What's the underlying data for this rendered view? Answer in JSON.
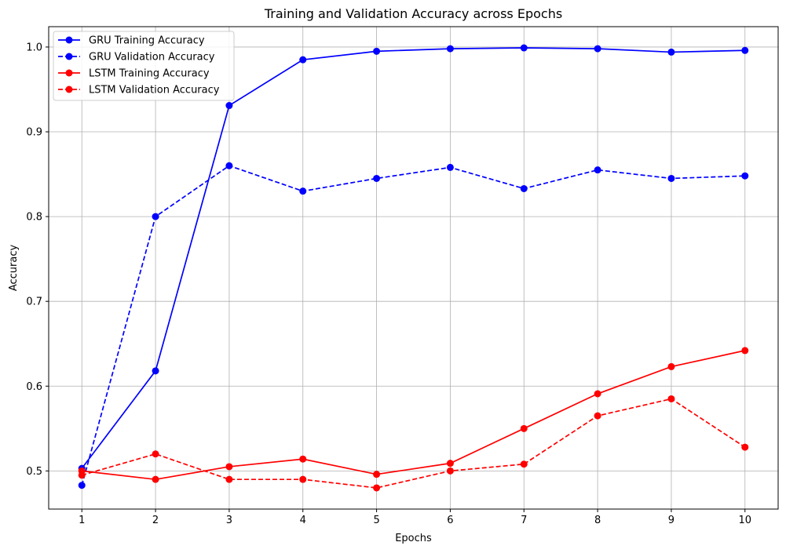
{
  "chart_data": {
    "type": "line",
    "title": "Training and Validation Accuracy across Epochs",
    "xlabel": "Epochs",
    "ylabel": "Accuracy",
    "x": [
      1,
      2,
      3,
      4,
      5,
      6,
      7,
      8,
      9,
      10
    ],
    "xlim": [
      0.55,
      10.45
    ],
    "ylim": [
      0.455,
      1.024
    ],
    "xticks": [
      1,
      2,
      3,
      4,
      5,
      6,
      7,
      8,
      9,
      10
    ],
    "yticks": [
      0.5,
      0.6,
      0.7,
      0.8,
      0.9,
      1.0
    ],
    "ytick_labels": [
      "0.5",
      "0.6",
      "0.7",
      "0.8",
      "0.9",
      "1.0"
    ],
    "grid": true,
    "legend_position": "top-left",
    "series": [
      {
        "name": "GRU Training Accuracy",
        "color": "#0000ff",
        "style": "solid",
        "marker": "circle",
        "values": [
          0.503,
          0.618,
          0.931,
          0.985,
          0.995,
          0.998,
          0.999,
          0.998,
          0.994,
          0.996
        ]
      },
      {
        "name": "GRU Validation Accuracy",
        "color": "#0000ff",
        "style": "dashed",
        "marker": "circle",
        "values": [
          0.483,
          0.8,
          0.86,
          0.83,
          0.845,
          0.858,
          0.833,
          0.855,
          0.845,
          0.848
        ]
      },
      {
        "name": "LSTM Training Accuracy",
        "color": "#ff0000",
        "style": "solid",
        "marker": "circle",
        "values": [
          0.5,
          0.49,
          0.505,
          0.514,
          0.496,
          0.509,
          0.55,
          0.591,
          0.623,
          0.642
        ]
      },
      {
        "name": "LSTM Validation Accuracy",
        "color": "#ff0000",
        "style": "dashed",
        "marker": "circle",
        "values": [
          0.495,
          0.52,
          0.49,
          0.49,
          0.48,
          0.5,
          0.508,
          0.565,
          0.585,
          0.528
        ]
      }
    ]
  }
}
